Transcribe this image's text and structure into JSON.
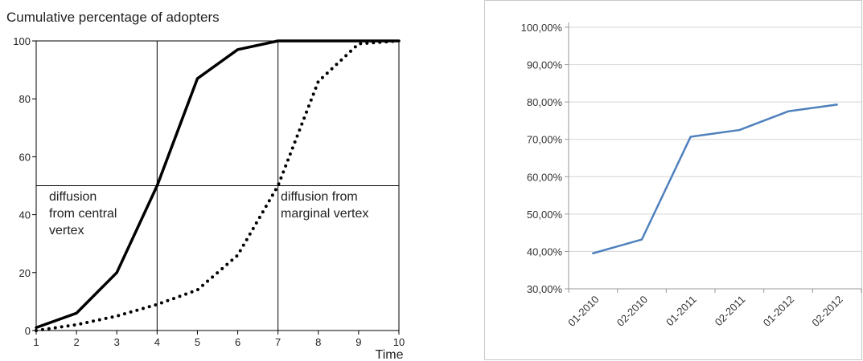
{
  "chart_data": [
    {
      "type": "line",
      "title": "Cumulative percentage of adopters",
      "xlabel": "Time",
      "ylabel": "",
      "x": [
        1,
        2,
        3,
        4,
        5,
        6,
        7,
        8,
        9,
        10
      ],
      "xlim": [
        1,
        10
      ],
      "ylim": [
        0,
        100
      ],
      "x_ticks": [
        1,
        2,
        3,
        4,
        5,
        6,
        7,
        8,
        9,
        10
      ],
      "y_ticks": [
        0,
        20,
        40,
        60,
        80,
        100
      ],
      "grid": false,
      "series": [
        {
          "style": "solid",
          "color": "#000000",
          "values": [
            1,
            6,
            20,
            50,
            87,
            97,
            100,
            100,
            100,
            100
          ]
        },
        {
          "style": "dotted",
          "color": "#000000",
          "values": [
            0,
            2,
            5,
            9,
            14,
            26,
            50,
            86,
            99,
            100
          ]
        }
      ],
      "reference_lines": {
        "x": [
          4,
          7
        ],
        "y": [
          50
        ]
      },
      "annotations": [
        {
          "lines": [
            "diffusion",
            "from central",
            "vertex"
          ]
        },
        {
          "lines": [
            "diffusion from",
            "marginal vertex"
          ]
        }
      ]
    },
    {
      "type": "line",
      "title": "",
      "xlabel": "",
      "ylabel": "",
      "categories": [
        "01-2010",
        "02-2010",
        "01-2011",
        "02-2011",
        "01-2012",
        "02-2012"
      ],
      "y_ticks": [
        "30,00%",
        "40,00%",
        "50,00%",
        "60,00%",
        "70,00%",
        "80,00%",
        "90,00%",
        "100,00%"
      ],
      "ylim": [
        30,
        100
      ],
      "grid": true,
      "series": [
        {
          "color": "#4f81bd",
          "values": [
            39.5,
            43.2,
            70.7,
            72.5,
            77.5,
            79.3
          ]
        }
      ]
    }
  ]
}
